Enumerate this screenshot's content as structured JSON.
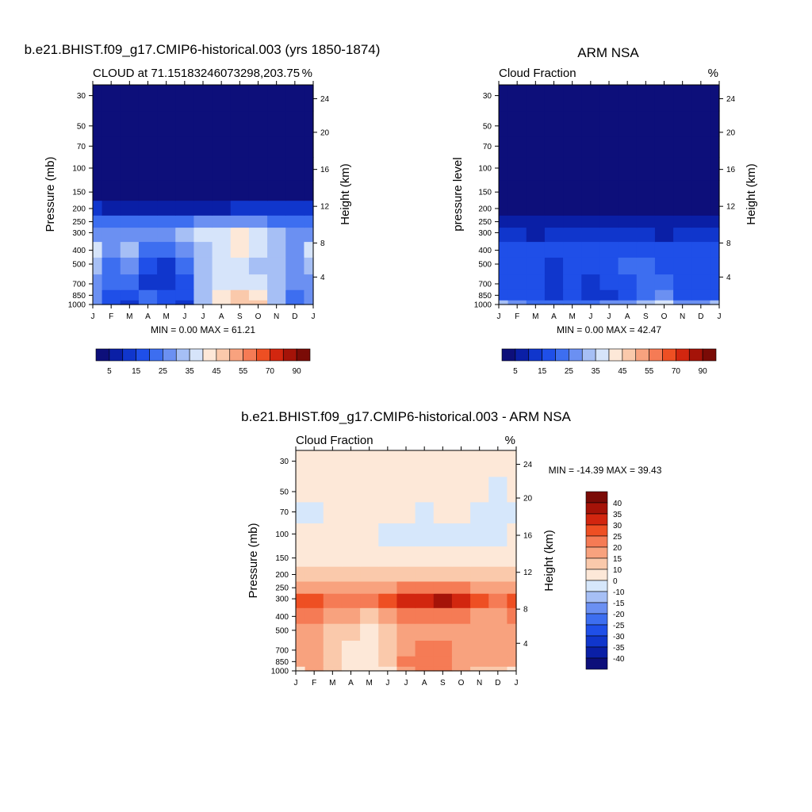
{
  "chart_data": [
    {
      "type": "heatmap",
      "title": "b.e21.BHIST.f09_g17.CMIP6-historical.003 (yrs 1850-1874)",
      "subtitle": "CLOUD at 71.15183246073298,203.75",
      "units": "%",
      "ylabel": "Pressure (mb)",
      "ylabel_right": "Height (km)",
      "stats": "MIN =   0.00 MAX =  61.21",
      "x": [
        "J",
        "F",
        "M",
        "A",
        "M",
        "J",
        "J",
        "A",
        "S",
        "O",
        "N",
        "D",
        "J"
      ],
      "y_ticks": [
        "30",
        "50",
        "70",
        "100",
        "150",
        "200",
        "250",
        "300",
        "400",
        "500",
        "700",
        "850",
        "1000"
      ],
      "y_ticks_right": [
        "24",
        "20",
        "16",
        "12",
        "8",
        "4"
      ],
      "colorbar_labels": [
        "5",
        "15",
        "25",
        "35",
        "45",
        "55",
        "70",
        "90"
      ],
      "levels": [
        1000,
        850,
        700,
        500,
        400,
        300,
        250,
        200,
        150,
        100,
        70,
        50,
        30
      ],
      "values": [
        [
          25,
          15,
          10,
          20,
          15,
          10,
          30,
          40,
          45,
          45,
          30,
          20,
          25
        ],
        [
          25,
          15,
          15,
          20,
          15,
          15,
          30,
          40,
          45,
          40,
          30,
          20,
          25
        ],
        [
          25,
          20,
          20,
          10,
          10,
          15,
          30,
          35,
          35,
          35,
          30,
          25,
          25
        ],
        [
          30,
          20,
          25,
          15,
          10,
          20,
          30,
          35,
          35,
          30,
          30,
          25,
          30
        ],
        [
          35,
          25,
          30,
          20,
          20,
          25,
          30,
          35,
          40,
          35,
          30,
          25,
          35
        ],
        [
          25,
          25,
          25,
          25,
          25,
          30,
          35,
          35,
          40,
          35,
          30,
          25,
          25
        ],
        [
          20,
          20,
          20,
          20,
          20,
          20,
          25,
          25,
          25,
          25,
          20,
          20,
          20
        ],
        [
          10,
          5,
          5,
          5,
          5,
          5,
          5,
          5,
          10,
          10,
          10,
          10,
          10
        ],
        [
          3,
          3,
          3,
          3,
          3,
          3,
          3,
          3,
          3,
          3,
          3,
          3,
          3
        ],
        [
          2,
          2,
          2,
          2,
          2,
          2,
          2,
          2,
          2,
          2,
          2,
          2,
          2
        ],
        [
          1,
          1,
          1,
          1,
          1,
          1,
          1,
          1,
          1,
          1,
          1,
          1,
          1
        ],
        [
          1,
          1,
          1,
          1,
          1,
          1,
          1,
          1,
          1,
          1,
          1,
          1,
          1
        ],
        [
          1,
          1,
          1,
          1,
          1,
          1,
          1,
          1,
          1,
          1,
          1,
          1,
          1
        ]
      ]
    },
    {
      "type": "heatmap",
      "title": "ARM NSA",
      "subtitle": "Cloud Fraction",
      "units": "%",
      "ylabel": "pressure level",
      "ylabel_right": "Height (km)",
      "stats": "MIN =   0.00 MAX =  42.47",
      "x": [
        "J",
        "F",
        "M",
        "A",
        "M",
        "J",
        "J",
        "A",
        "S",
        "O",
        "N",
        "D",
        "J"
      ],
      "y_ticks": [
        "30",
        "50",
        "70",
        "100",
        "150",
        "200",
        "250",
        "300",
        "400",
        "500",
        "700",
        "850",
        "1000"
      ],
      "y_ticks_right": [
        "24",
        "20",
        "16",
        "12",
        "8",
        "4"
      ],
      "colorbar_labels": [
        "5",
        "15",
        "25",
        "35",
        "45",
        "55",
        "70",
        "90"
      ],
      "levels": [
        1000,
        850,
        700,
        500,
        400,
        300,
        250,
        200,
        150,
        100,
        70,
        50,
        30
      ],
      "values": [
        [
          30,
          25,
          20,
          20,
          20,
          20,
          25,
          25,
          30,
          35,
          25,
          25,
          30
        ],
        [
          15,
          15,
          15,
          10,
          15,
          10,
          10,
          15,
          20,
          25,
          15,
          15,
          15
        ],
        [
          15,
          15,
          15,
          10,
          15,
          10,
          15,
          15,
          20,
          20,
          15,
          15,
          15
        ],
        [
          15,
          15,
          15,
          10,
          15,
          15,
          15,
          20,
          20,
          15,
          15,
          15,
          15
        ],
        [
          15,
          15,
          15,
          15,
          15,
          15,
          15,
          15,
          15,
          15,
          15,
          15,
          15
        ],
        [
          10,
          10,
          5,
          10,
          10,
          10,
          10,
          10,
          10,
          5,
          10,
          10,
          10
        ],
        [
          5,
          5,
          5,
          5,
          5,
          5,
          5,
          5,
          5,
          5,
          5,
          5,
          5
        ],
        [
          2,
          2,
          2,
          2,
          2,
          2,
          2,
          2,
          2,
          2,
          2,
          2,
          2
        ],
        [
          1,
          1,
          1,
          1,
          1,
          1,
          1,
          1,
          1,
          1,
          1,
          1,
          1
        ],
        [
          1,
          1,
          1,
          1,
          1,
          1,
          1,
          1,
          1,
          1,
          1,
          1,
          1
        ],
        [
          1,
          1,
          1,
          1,
          1,
          1,
          1,
          1,
          1,
          1,
          1,
          1,
          1
        ],
        [
          1,
          1,
          1,
          1,
          1,
          1,
          1,
          1,
          1,
          1,
          1,
          1,
          1
        ],
        [
          1,
          1,
          1,
          1,
          1,
          1,
          1,
          1,
          1,
          1,
          1,
          1,
          1
        ]
      ]
    },
    {
      "type": "heatmap",
      "title": "b.e21.BHIST.f09_g17.CMIP6-historical.003 - ARM NSA",
      "subtitle": "Cloud Fraction",
      "units": "%",
      "ylabel": "Pressure (mb)",
      "ylabel_right": "Height (km)",
      "stats": "MIN = -14.39 MAX =  39.43",
      "x": [
        "J",
        "F",
        "M",
        "A",
        "M",
        "J",
        "J",
        "A",
        "S",
        "O",
        "N",
        "D",
        "J"
      ],
      "y_ticks": [
        "30",
        "50",
        "70",
        "100",
        "150",
        "200",
        "250",
        "300",
        "400",
        "500",
        "700",
        "850",
        "1000"
      ],
      "y_ticks_right": [
        "24",
        "20",
        "16",
        "12",
        "8",
        "4"
      ],
      "colorbar_labels": [
        "40",
        "35",
        "30",
        "25",
        "20",
        "15",
        "10",
        "0",
        "-10",
        "-15",
        "-20",
        "-25",
        "-30",
        "-35",
        "-40"
      ],
      "levels": [
        1000,
        850,
        700,
        500,
        400,
        300,
        250,
        200,
        150,
        100,
        70,
        50,
        30
      ],
      "values": [
        [
          5,
          15,
          10,
          5,
          0,
          5,
          15,
          20,
          20,
          15,
          10,
          10,
          5
        ],
        [
          15,
          15,
          10,
          5,
          5,
          10,
          20,
          20,
          20,
          15,
          15,
          15,
          15
        ],
        [
          15,
          15,
          10,
          5,
          5,
          10,
          15,
          20,
          20,
          15,
          15,
          15,
          15
        ],
        [
          15,
          15,
          10,
          10,
          5,
          10,
          15,
          15,
          15,
          15,
          15,
          15,
          15
        ],
        [
          20,
          20,
          15,
          15,
          10,
          15,
          20,
          20,
          20,
          20,
          15,
          15,
          20
        ],
        [
          25,
          25,
          20,
          20,
          20,
          25,
          30,
          30,
          35,
          30,
          25,
          20,
          25
        ],
        [
          15,
          15,
          15,
          15,
          15,
          15,
          20,
          20,
          20,
          20,
          15,
          15,
          15
        ],
        [
          10,
          10,
          10,
          10,
          10,
          10,
          10,
          10,
          10,
          10,
          10,
          10,
          10
        ],
        [
          5,
          5,
          5,
          5,
          5,
          5,
          5,
          5,
          5,
          5,
          5,
          5,
          5
        ],
        [
          5,
          5,
          5,
          5,
          5,
          -3,
          -3,
          -3,
          -3,
          -3,
          -3,
          -3,
          5
        ],
        [
          -3,
          -3,
          5,
          5,
          5,
          5,
          5,
          -3,
          5,
          5,
          -3,
          -3,
          -3
        ],
        [
          5,
          5,
          5,
          5,
          5,
          5,
          5,
          5,
          5,
          5,
          5,
          -3,
          5
        ],
        [
          5,
          5,
          5,
          5,
          5,
          5,
          5,
          5,
          5,
          5,
          5,
          5,
          5
        ]
      ]
    }
  ],
  "palettes": {
    "absolute": {
      "thresholds": [
        5,
        10,
        15,
        20,
        25,
        30,
        35,
        40,
        45,
        50,
        55,
        60,
        70,
        80,
        90
      ],
      "colors": [
        "#0d0f7a",
        "#0a1fa6",
        "#1036cc",
        "#1f4fe8",
        "#3d6ef0",
        "#6b90f2",
        "#a6bff5",
        "#d6e4fa",
        "#fde8d8",
        "#fac9ab",
        "#f8a27e",
        "#f57b55",
        "#ee4f23",
        "#d2260f",
        "#a51308",
        "#7a0b06"
      ]
    },
    "difference": {
      "thresholds": [
        -40,
        -35,
        -30,
        -25,
        -20,
        -15,
        -10,
        0,
        10,
        15,
        20,
        25,
        30,
        35,
        40
      ],
      "colors": [
        "#0d0f7a",
        "#0a1fa6",
        "#1036cc",
        "#1f4fe8",
        "#3d6ef0",
        "#6b90f2",
        "#a6bff5",
        "#d6e7fb",
        "#fde8d8",
        "#fac9ab",
        "#f8a27e",
        "#f57b55",
        "#ee4f23",
        "#d2260f",
        "#a51308",
        "#7a0b06"
      ]
    }
  }
}
